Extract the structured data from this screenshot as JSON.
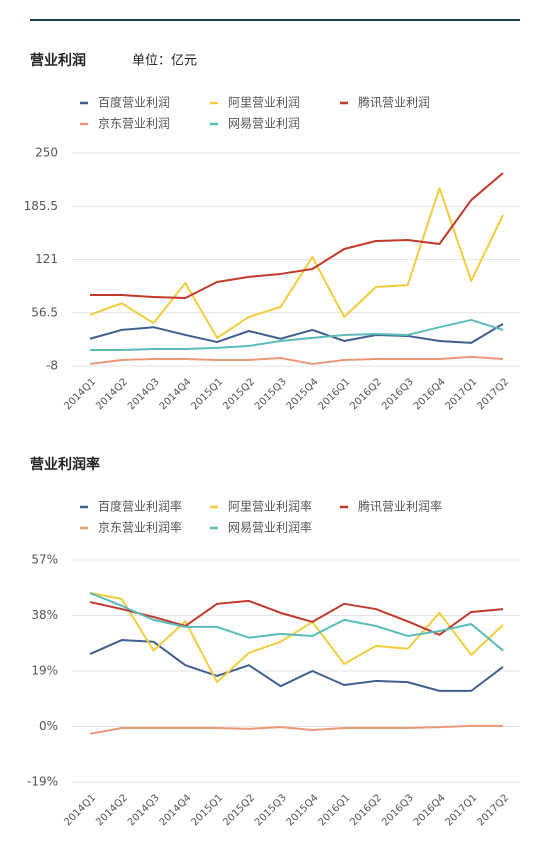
{
  "chart_data": [
    {
      "type": "line",
      "title": "营业利润",
      "unit": "单位：亿元",
      "categories": [
        "2014Q1",
        "2014Q2",
        "2014Q3",
        "2014Q4",
        "2015Q1",
        "2015Q2",
        "2015Q3",
        "2015Q4",
        "2016Q1",
        "2016Q2",
        "2016Q3",
        "2016Q4",
        "2017Q1",
        "2017Q2"
      ],
      "series": [
        {
          "name": "百度营业利润",
          "color": "#3f5f8f",
          "values": [
            25,
            35.7,
            39,
            29.6,
            21,
            34.4,
            25,
            35.7,
            22.3,
            29.6,
            28.4,
            22.3,
            20,
            43
          ]
        },
        {
          "name": "阿里营业利润",
          "color": "#f2cd3b",
          "values": [
            54,
            68,
            44,
            92.6,
            26,
            51.4,
            63.5,
            124,
            51.4,
            87.7,
            90,
            207.6,
            95,
            175
          ]
        },
        {
          "name": "腾讯营业利润",
          "color": "#c0392b",
          "values": [
            78,
            78,
            75.6,
            74.4,
            93.8,
            100,
            103.5,
            109.5,
            133.7,
            143.4,
            144.6,
            139.8,
            193,
            225.8
          ]
        },
        {
          "name": "京东营业利润",
          "color": "#e8997a",
          "values": [
            -5.5,
            -0.7,
            0.5,
            0.5,
            -0.7,
            -0.7,
            1.7,
            -5.5,
            -0.7,
            0.5,
            0.5,
            0.5,
            3,
            0.5
          ]
        },
        {
          "name": "网易营业利润",
          "color": "#5bbcb8",
          "values": [
            11.4,
            11.4,
            12.6,
            12.6,
            13.9,
            16.3,
            22.3,
            26,
            29.6,
            30.8,
            29.6,
            39,
            47.8,
            35.7
          ]
        }
      ],
      "ylim": [
        -8,
        250
      ],
      "yticks": [
        -8,
        56.5,
        121,
        185.5,
        250
      ],
      "grid": true
    },
    {
      "type": "line",
      "title": "营业利润率",
      "categories": [
        "2014Q1",
        "2014Q2",
        "2014Q3",
        "2014Q4",
        "2015Q1",
        "2015Q2",
        "2015Q3",
        "2015Q4",
        "2016Q1",
        "2016Q2",
        "2016Q3",
        "2016Q4",
        "2017Q1",
        "2017Q2"
      ],
      "series": [
        {
          "name": "百度营业利润率",
          "color": "#3f5f8f",
          "values": [
            24.8,
            29.6,
            29,
            21,
            17.3,
            21,
            13.8,
            19,
            14.2,
            15.6,
            15.2,
            12.2,
            12.2,
            20.4
          ]
        },
        {
          "name": "阿里营业利润率",
          "color": "#f2cd3b",
          "values": [
            45.7,
            43.7,
            26,
            36,
            15.2,
            25.2,
            29,
            35.8,
            21.4,
            27.6,
            26.6,
            38.9,
            24.5,
            34.8
          ]
        },
        {
          "name": "腾讯营业利润率",
          "color": "#c0392b",
          "values": [
            42.6,
            40.2,
            37.5,
            34.4,
            42,
            43,
            38.9,
            35.8,
            42,
            40.2,
            36,
            31.4,
            39.2,
            40.2
          ]
        },
        {
          "name": "京东营业利润率",
          "color": "#e8997a",
          "values": [
            -2.5,
            -0.5,
            -0.5,
            -0.5,
            -0.5,
            -0.8,
            -0.2,
            -1.2,
            -0.5,
            -0.5,
            -0.5,
            -0.2,
            0.2,
            0.2
          ]
        },
        {
          "name": "网易营业利润率",
          "color": "#5bbcb8",
          "values": [
            45.7,
            41.3,
            36.5,
            34.1,
            34.1,
            30.4,
            31.7,
            31,
            36.5,
            34.4,
            31,
            32.7,
            35.1,
            26
          ]
        }
      ],
      "ylim": [
        -19,
        57
      ],
      "yticks": [
        {
          "value": -19,
          "label": "-19%"
        },
        {
          "value": 0,
          "label": "0%"
        },
        {
          "value": 19,
          "label": "19%"
        },
        {
          "value": 38,
          "label": "38%"
        },
        {
          "value": 57,
          "label": "57%"
        }
      ],
      "grid": true
    }
  ]
}
